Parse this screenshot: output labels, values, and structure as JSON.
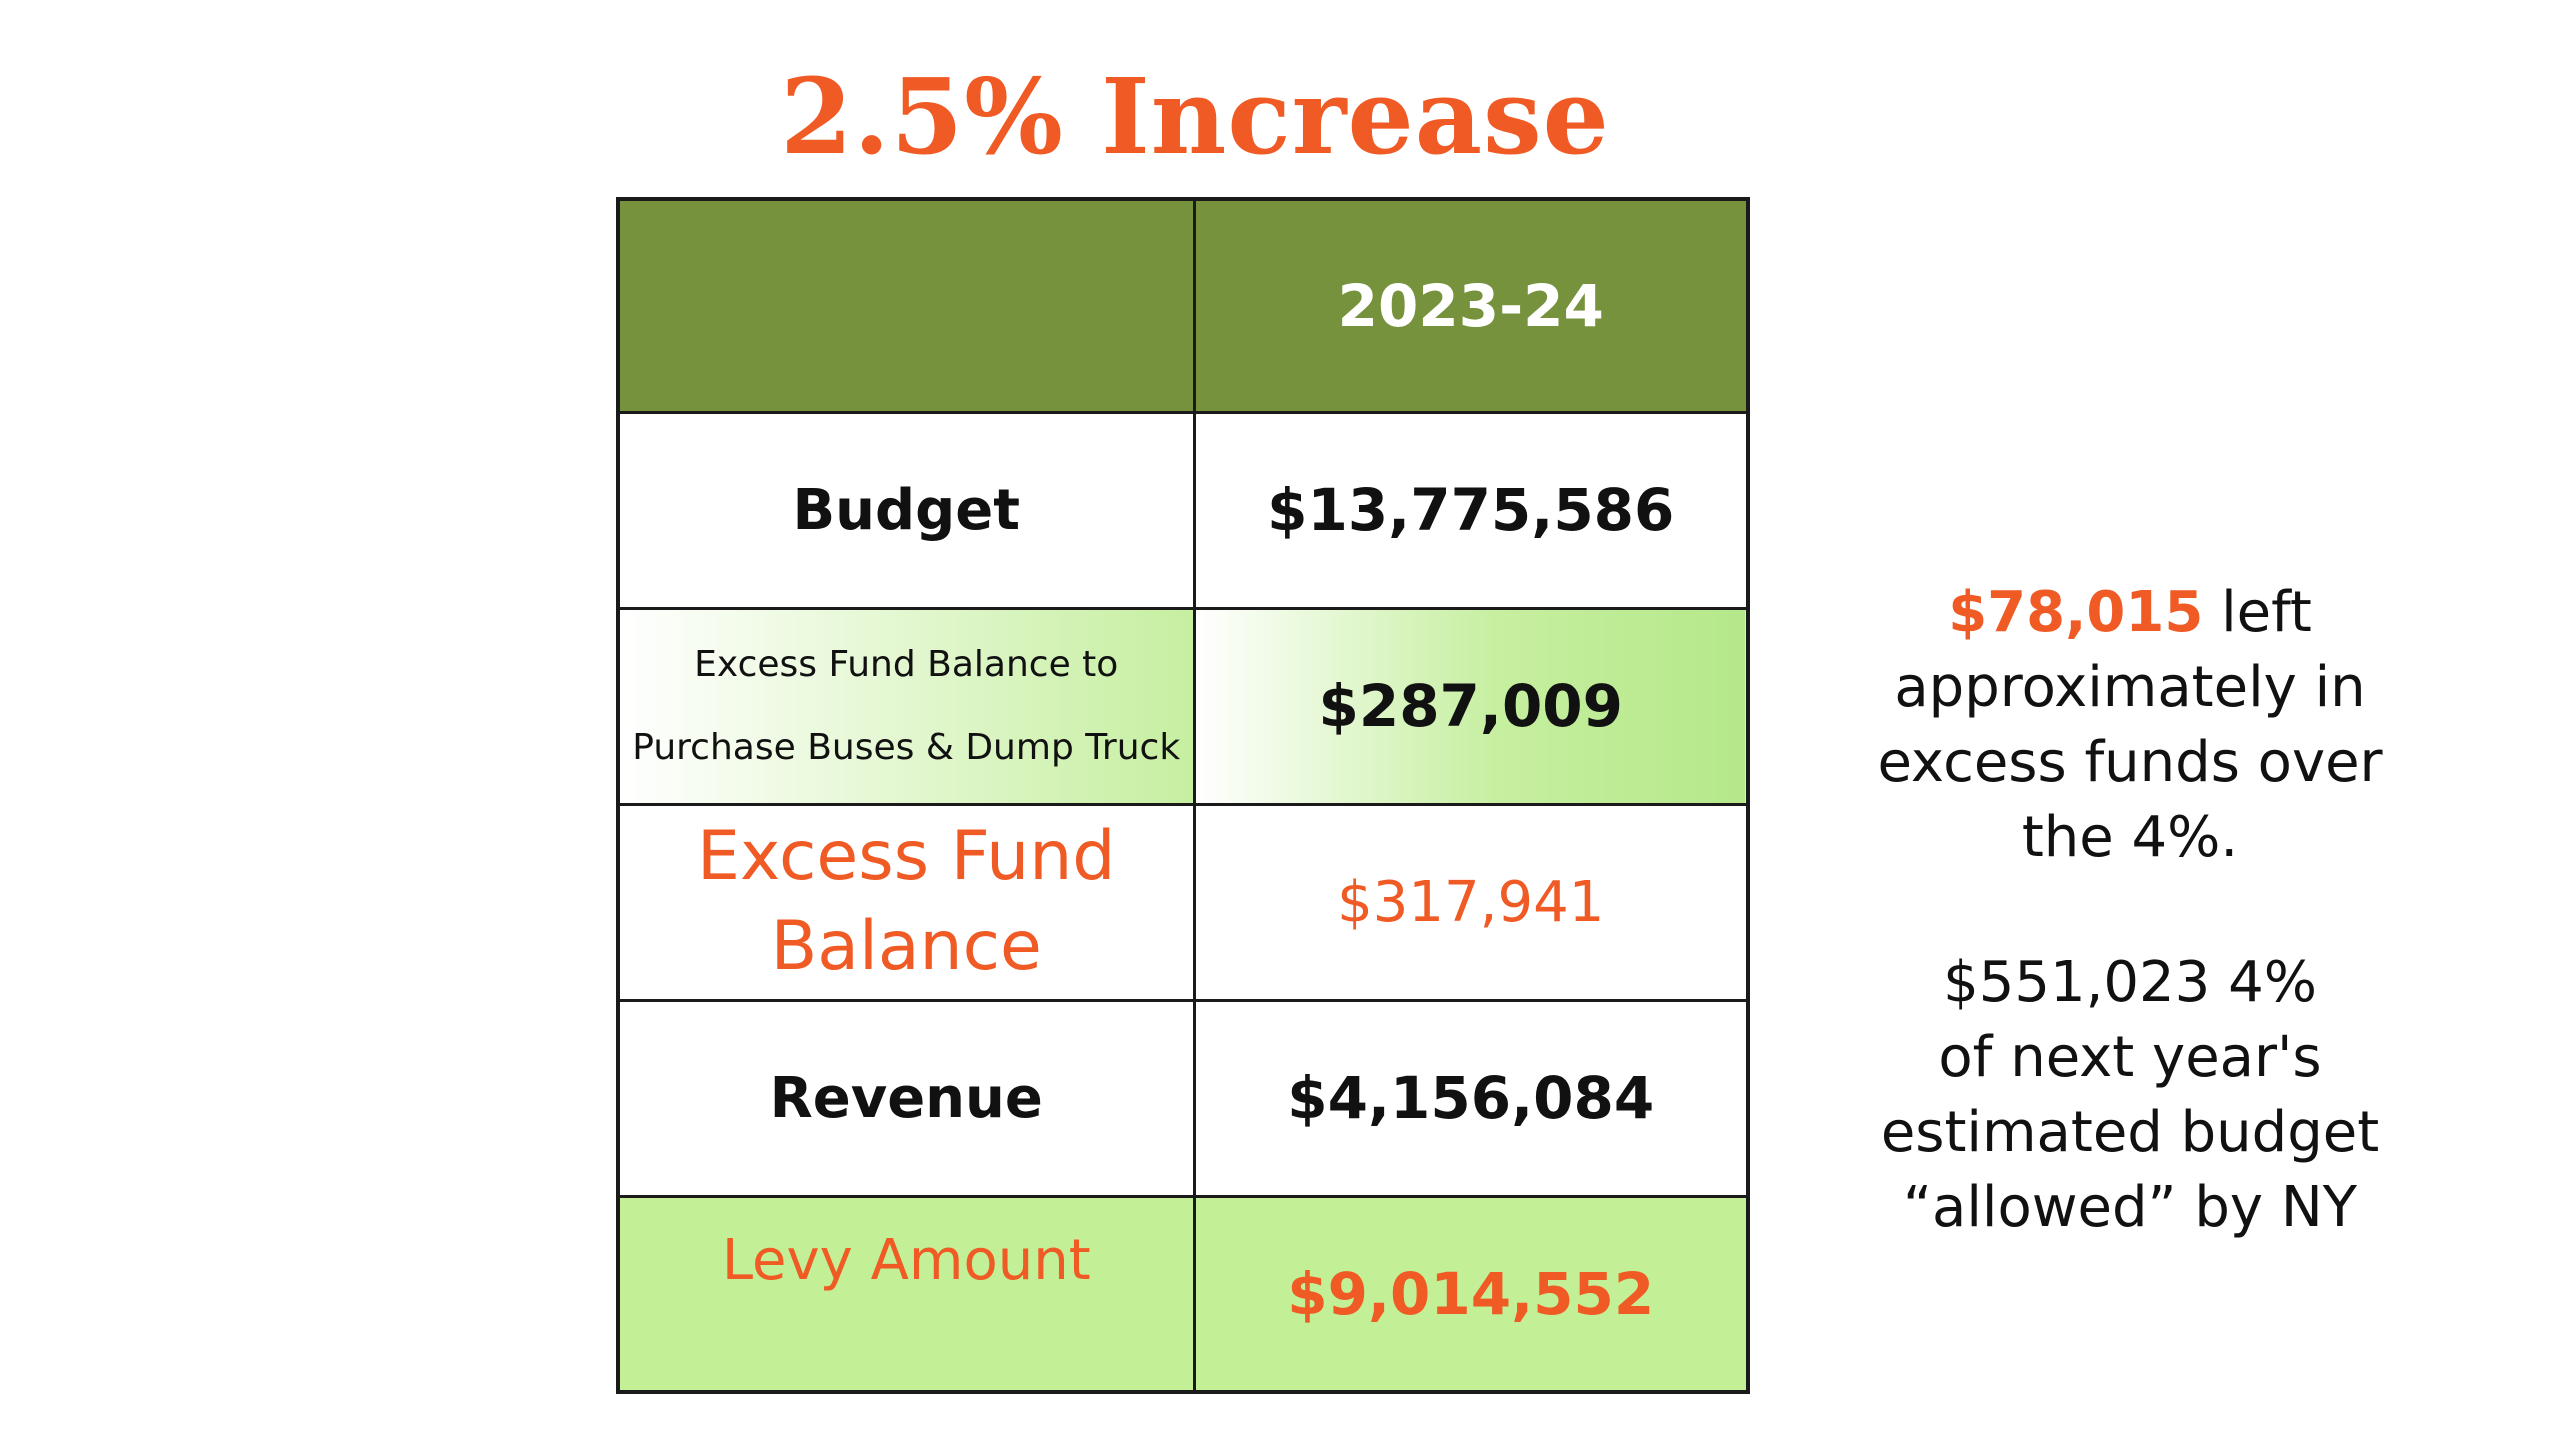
{
  "title": "2.5% Increase",
  "table": {
    "header": {
      "blank": "",
      "year": "2023-24"
    },
    "rows": [
      {
        "label": "Budget",
        "value": "$13,775,586"
      },
      {
        "label_line1": "Excess Fund Balance to",
        "label_line2": "Purchase Buses & Dump Truck",
        "value": "$287,009"
      },
      {
        "label_line1": "Excess Fund",
        "label_line2": "Balance",
        "value": "$317,941"
      },
      {
        "label": "Revenue",
        "value": "$4,156,084"
      },
      {
        "label": "Levy Amount",
        "value": "$9,014,552"
      }
    ]
  },
  "notes": {
    "excess": {
      "amount": "$78,015",
      "line1_rest": " left",
      "line2": "approximately in",
      "line3": "excess funds over",
      "line4": "the 4%."
    },
    "allowed": {
      "line1": "$551,023 4%",
      "line2": "of next year's",
      "line3": "estimated budget",
      "line4": "“allowed” by NY"
    }
  },
  "colors": {
    "accent_orange": "#f05a24",
    "header_green": "#76923c",
    "light_green": "#c3ef96"
  }
}
